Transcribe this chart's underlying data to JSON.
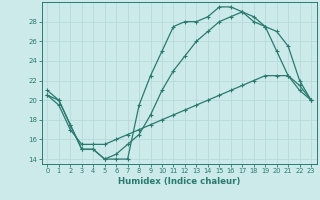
{
  "xlabel": "Humidex (Indice chaleur)",
  "bg_color": "#cceaea",
  "grid_color": "#b0d8d8",
  "line_color": "#2a7a70",
  "xlim": [
    -0.5,
    23.5
  ],
  "ylim": [
    13.5,
    30.0
  ],
  "yticks": [
    14,
    16,
    18,
    20,
    22,
    24,
    26,
    28
  ],
  "xticks": [
    0,
    1,
    2,
    3,
    4,
    5,
    6,
    7,
    8,
    9,
    10,
    11,
    12,
    13,
    14,
    15,
    16,
    17,
    18,
    19,
    20,
    21,
    22,
    23
  ],
  "series1_x": [
    0,
    1,
    2,
    3,
    4,
    5,
    6,
    7,
    8,
    9,
    10,
    11,
    12,
    13,
    14,
    15,
    16,
    17,
    18,
    19,
    20,
    21,
    22,
    23
  ],
  "series1_y": [
    21.0,
    20.0,
    17.5,
    15.0,
    15.0,
    14.0,
    14.0,
    14.0,
    19.5,
    22.5,
    25.0,
    27.5,
    28.0,
    28.0,
    28.5,
    29.5,
    29.5,
    29.0,
    28.5,
    27.5,
    25.0,
    22.5,
    21.0,
    20.0
  ],
  "series2_x": [
    0,
    1,
    2,
    3,
    4,
    5,
    6,
    7,
    8,
    9,
    10,
    11,
    12,
    13,
    14,
    15,
    16,
    17,
    18,
    19,
    20,
    21,
    22,
    23
  ],
  "series2_y": [
    20.5,
    20.0,
    17.5,
    15.0,
    15.0,
    14.0,
    14.5,
    15.5,
    16.5,
    18.5,
    21.0,
    23.0,
    24.5,
    26.0,
    27.0,
    28.0,
    28.5,
    29.0,
    28.0,
    27.5,
    27.0,
    25.5,
    22.0,
    20.0
  ],
  "series3_x": [
    0,
    1,
    2,
    3,
    4,
    5,
    6,
    7,
    8,
    9,
    10,
    11,
    12,
    13,
    14,
    15,
    16,
    17,
    18,
    19,
    20,
    21,
    22,
    23
  ],
  "series3_y": [
    20.5,
    19.5,
    17.0,
    15.5,
    15.5,
    15.5,
    16.0,
    16.5,
    17.0,
    17.5,
    18.0,
    18.5,
    19.0,
    19.5,
    20.0,
    20.5,
    21.0,
    21.5,
    22.0,
    22.5,
    22.5,
    22.5,
    21.5,
    20.0
  ]
}
